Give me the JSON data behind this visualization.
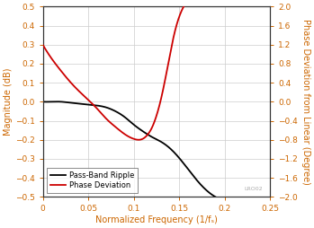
{
  "xlabel": "Normalized Frequency (1/fₛ)",
  "ylabel_left": "Magnitude (dB)",
  "ylabel_right": "Phase Deviation from Linear (Degree)",
  "xlim": [
    0,
    0.25
  ],
  "ylim_left": [
    -0.5,
    0.5
  ],
  "ylim_right": [
    -2,
    2
  ],
  "yticks_left": [
    -0.5,
    -0.4,
    -0.3,
    -0.2,
    -0.1,
    0,
    0.1,
    0.2,
    0.3,
    0.4,
    0.5
  ],
  "yticks_right": [
    -2,
    -1.6,
    -1.2,
    -0.8,
    -0.4,
    0,
    0.4,
    0.8,
    1.2,
    1.6,
    2
  ],
  "xticks": [
    0,
    0.05,
    0.1,
    0.15,
    0.2,
    0.25
  ],
  "xtick_labels": [
    "0",
    "0.05",
    "0.1",
    "0.15",
    "0.2",
    "0.25"
  ],
  "legend_labels": [
    "Pass-Band Ripple",
    "Phase Deviation"
  ],
  "line_colors": [
    "#000000",
    "#cc0000"
  ],
  "label_color": "#cc6600",
  "watermark": "LRO02",
  "background_color": "#ffffff",
  "grid_color": "#cccccc",
  "black_x": [
    0.0,
    0.01,
    0.02,
    0.03,
    0.04,
    0.05,
    0.06,
    0.07,
    0.08,
    0.09,
    0.1,
    0.11,
    0.12,
    0.13,
    0.14,
    0.15,
    0.16,
    0.17,
    0.18,
    0.19
  ],
  "black_y": [
    0.0,
    0.0,
    0.0,
    -0.005,
    -0.01,
    -0.015,
    -0.02,
    -0.03,
    -0.05,
    -0.08,
    -0.12,
    -0.155,
    -0.185,
    -0.21,
    -0.245,
    -0.295,
    -0.355,
    -0.415,
    -0.465,
    -0.5
  ],
  "red_x": [
    0.0,
    0.01,
    0.02,
    0.03,
    0.04,
    0.05,
    0.06,
    0.07,
    0.08,
    0.09,
    0.1,
    0.105,
    0.11,
    0.115,
    0.12,
    0.125,
    0.13,
    0.135,
    0.14,
    0.145,
    0.15,
    0.155
  ],
  "red_y": [
    1.2,
    0.9,
    0.65,
    0.42,
    0.22,
    0.04,
    -0.15,
    -0.36,
    -0.53,
    -0.68,
    -0.78,
    -0.8,
    -0.78,
    -0.7,
    -0.55,
    -0.3,
    0.05,
    0.5,
    1.0,
    1.45,
    1.78,
    2.0
  ]
}
